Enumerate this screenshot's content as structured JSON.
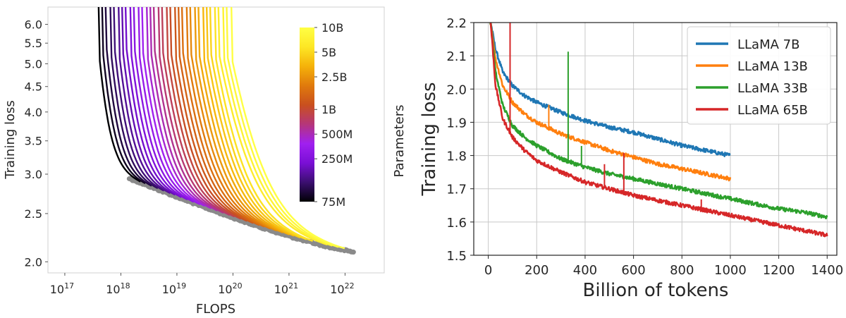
{
  "chart_data": [
    {
      "type": "line",
      "xlabel": "FLOPS",
      "ylabel": "Training loss",
      "x_scale": "log",
      "y_scale": "log",
      "xlim": [
        5e+16,
        5e+22
      ],
      "ylim": [
        1.9,
        6.5
      ],
      "x_ticks": [
        {
          "value": 1e+17,
          "base": "10",
          "exp": "17"
        },
        {
          "value": 1e+18,
          "base": "10",
          "exp": "18"
        },
        {
          "value": 1e+19,
          "base": "10",
          "exp": "19"
        },
        {
          "value": 1e+20,
          "base": "10",
          "exp": "20"
        },
        {
          "value": 1e+21,
          "base": "10",
          "exp": "21"
        },
        {
          "value": 1e+22,
          "base": "10",
          "exp": "22"
        }
      ],
      "y_ticks": [
        {
          "value": 2.0,
          "label": "2.0"
        },
        {
          "value": 2.5,
          "label": "2.5"
        },
        {
          "value": 3.0,
          "label": "3.0"
        },
        {
          "value": 3.5,
          "label": "3.5"
        },
        {
          "value": 4.0,
          "label": "4.0"
        },
        {
          "value": 4.5,
          "label": "4.5"
        },
        {
          "value": 5.0,
          "label": "5.0"
        },
        {
          "value": 5.5,
          "label": "5.5"
        },
        {
          "value": 6.0,
          "label": "6.0"
        }
      ],
      "grid": false,
      "frontier_color": "#8a8a8a",
      "colorbar": {
        "label": "Parameters",
        "scale": "log",
        "min": 75000000.0,
        "max": 10000000000.0,
        "ticks": [
          {
            "value": 10000000000.0,
            "label": "10B"
          },
          {
            "value": 5000000000.0,
            "label": "5B"
          },
          {
            "value": 2500000000.0,
            "label": "2.5B"
          },
          {
            "value": 1000000000.0,
            "label": "1B"
          },
          {
            "value": 500000000.0,
            "label": "500M"
          },
          {
            "value": 250000000.0,
            "label": "250M"
          },
          {
            "value": 75000000.0,
            "label": "75M"
          }
        ],
        "colors": [
          "#000004",
          "#3b0f70",
          "#7a0fd6",
          "#a020f0",
          "#b5367a",
          "#c9501e",
          "#e07a0c",
          "#f5b20a",
          "#fde725",
          "#ffff44"
        ]
      }
    },
    {
      "type": "line",
      "xlabel": "Billion of tokens",
      "ylabel": "Training loss",
      "xlim": [
        -60,
        1440
      ],
      "ylim": [
        1.5,
        2.2
      ],
      "x_ticks": [
        0,
        200,
        400,
        600,
        800,
        1000,
        1200,
        1400
      ],
      "y_ticks": [
        "1.5",
        "1.6",
        "1.7",
        "1.8",
        "1.9",
        "2.0",
        "2.1",
        "2.2"
      ],
      "grid": true,
      "legend": "top-right",
      "series": [
        {
          "name": "LLaMA 7B",
          "color": "#1f77b4",
          "x": [
            10,
            30,
            60,
            100,
            150,
            200,
            300,
            400,
            500,
            600,
            700,
            800,
            900,
            1000
          ],
          "y": [
            2.2,
            2.12,
            2.05,
            2.01,
            1.98,
            1.96,
            1.93,
            1.905,
            1.885,
            1.87,
            1.85,
            1.83,
            1.815,
            1.8
          ]
        },
        {
          "name": "LLaMA 13B",
          "color": "#ff7f0e",
          "x": [
            10,
            30,
            60,
            100,
            150,
            200,
            300,
            400,
            500,
            600,
            700,
            800,
            900,
            1000
          ],
          "y": [
            2.2,
            2.09,
            2.01,
            1.96,
            1.925,
            1.9,
            1.865,
            1.84,
            1.815,
            1.795,
            1.775,
            1.76,
            1.745,
            1.73
          ]
        },
        {
          "name": "LLaMA 33B",
          "color": "#2ca02c",
          "x": [
            10,
            30,
            60,
            100,
            150,
            200,
            300,
            400,
            500,
            600,
            700,
            800,
            900,
            1000,
            1100,
            1200,
            1300,
            1400
          ],
          "y": [
            2.2,
            2.05,
            1.95,
            1.89,
            1.855,
            1.83,
            1.79,
            1.765,
            1.745,
            1.73,
            1.715,
            1.7,
            1.685,
            1.67,
            1.655,
            1.64,
            1.63,
            1.615
          ]
        },
        {
          "name": "LLaMA 65B",
          "color": "#d62728",
          "x": [
            10,
            30,
            60,
            100,
            150,
            200,
            300,
            400,
            500,
            600,
            700,
            800,
            900,
            1000,
            1100,
            1200,
            1300,
            1400
          ],
          "y": [
            2.2,
            2.01,
            1.91,
            1.855,
            1.815,
            1.785,
            1.75,
            1.72,
            1.7,
            1.68,
            1.665,
            1.65,
            1.635,
            1.62,
            1.605,
            1.59,
            1.575,
            1.56
          ]
        }
      ]
    }
  ]
}
